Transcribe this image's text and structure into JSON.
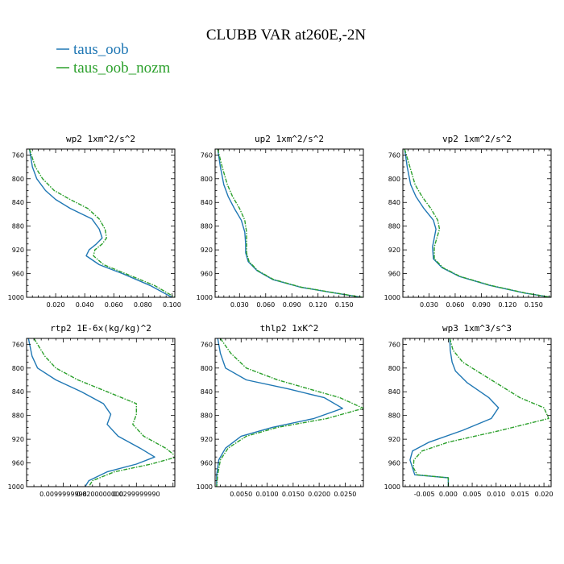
{
  "figure": {
    "title": "CLUBB VAR at260E,-2N",
    "legend": [
      {
        "label": "taus_oob",
        "color": "#1f77b4"
      },
      {
        "label": "taus_oob_nozm",
        "color": "#2ca02c"
      }
    ]
  },
  "chart_data": [
    {
      "type": "line",
      "title": "wp2   1xm^2/s^2",
      "xlim": [
        0.0,
        0.102
      ],
      "ylim": [
        1000,
        750
      ],
      "xticks": [
        0.02,
        0.04,
        0.06,
        0.08,
        0.1
      ],
      "xtick_labels": [
        "0.020",
        "0.040",
        "0.060",
        "0.080",
        "0.100"
      ],
      "yticks": [
        760,
        800,
        840,
        880,
        920,
        960,
        1000
      ],
      "ytick_labels": [
        "760",
        "800",
        "840",
        "880",
        "920",
        "960",
        "1000"
      ],
      "series": [
        {
          "name": "taus_oob",
          "x": [
            0.002,
            0.004,
            0.007,
            0.013,
            0.02,
            0.03,
            0.045,
            0.05,
            0.052,
            0.048,
            0.043,
            0.041,
            0.05,
            0.066,
            0.085,
            0.1
          ],
          "y": [
            750,
            780,
            800,
            820,
            835,
            850,
            868,
            885,
            900,
            910,
            920,
            930,
            945,
            960,
            980,
            1000
          ]
        },
        {
          "name": "taus_oob_nozm",
          "x": [
            0.002,
            0.006,
            0.011,
            0.019,
            0.03,
            0.042,
            0.05,
            0.054,
            0.055,
            0.052,
            0.047,
            0.046,
            0.053,
            0.068,
            0.088,
            0.102
          ],
          "y": [
            750,
            780,
            800,
            820,
            835,
            850,
            868,
            885,
            900,
            910,
            920,
            930,
            945,
            960,
            980,
            1000
          ]
        }
      ]
    },
    {
      "type": "line",
      "title": "up2   1xm^2/s^2",
      "xlim": [
        0.002,
        0.172
      ],
      "ylim": [
        1000,
        750
      ],
      "xticks": [
        0.03,
        0.06,
        0.09,
        0.12,
        0.15
      ],
      "xtick_labels": [
        "0.030",
        "0.060",
        "0.090",
        "0.120",
        "0.150"
      ],
      "yticks": [
        760,
        800,
        840,
        880,
        920,
        960,
        1000
      ],
      "ytick_labels": [
        "760",
        "800",
        "840",
        "880",
        "920",
        "960",
        "1000"
      ],
      "series": [
        {
          "name": "taus_oob",
          "x": [
            0.005,
            0.008,
            0.012,
            0.017,
            0.024,
            0.032,
            0.036,
            0.037,
            0.037,
            0.04,
            0.05,
            0.068,
            0.1,
            0.14,
            0.17
          ],
          "y": [
            750,
            780,
            810,
            830,
            850,
            870,
            890,
            910,
            925,
            940,
            955,
            970,
            983,
            993,
            1000
          ]
        },
        {
          "name": "taus_oob_nozm",
          "x": [
            0.005,
            0.01,
            0.016,
            0.022,
            0.03,
            0.036,
            0.038,
            0.038,
            0.038,
            0.041,
            0.051,
            0.069,
            0.101,
            0.141,
            0.171
          ],
          "y": [
            750,
            780,
            810,
            830,
            850,
            870,
            890,
            910,
            925,
            940,
            955,
            970,
            983,
            993,
            1000
          ]
        }
      ]
    },
    {
      "type": "line",
      "title": "vp2   1xm^2/s^2",
      "xlim": [
        0.0,
        0.17
      ],
      "ylim": [
        1000,
        750
      ],
      "xticks": [
        0.03,
        0.06,
        0.09,
        0.12,
        0.15
      ],
      "xtick_labels": [
        "0.030",
        "0.060",
        "0.090",
        "0.120",
        "0.150"
      ],
      "yticks": [
        760,
        800,
        840,
        880,
        920,
        960,
        1000
      ],
      "ytick_labels": [
        "760",
        "800",
        "840",
        "880",
        "920",
        "960",
        "1000"
      ],
      "series": [
        {
          "name": "taus_oob",
          "x": [
            0.002,
            0.005,
            0.009,
            0.015,
            0.024,
            0.035,
            0.038,
            0.036,
            0.034,
            0.035,
            0.045,
            0.065,
            0.1,
            0.14,
            0.17
          ],
          "y": [
            750,
            780,
            810,
            830,
            850,
            870,
            885,
            900,
            915,
            935,
            950,
            965,
            980,
            993,
            1000
          ]
        },
        {
          "name": "taus_oob_nozm",
          "x": [
            0.002,
            0.008,
            0.014,
            0.022,
            0.032,
            0.04,
            0.042,
            0.039,
            0.036,
            0.036,
            0.046,
            0.066,
            0.101,
            0.141,
            0.17
          ],
          "y": [
            750,
            780,
            810,
            830,
            850,
            870,
            885,
            900,
            915,
            935,
            950,
            965,
            980,
            993,
            1000
          ]
        }
      ]
    },
    {
      "type": "line",
      "title": "rtp2   1E-6x(kg/kg)^2",
      "xlim": [
        0.0,
        0.0405
      ],
      "ylim": [
        1000,
        750
      ],
      "xticks": [
        0.01,
        0.02,
        0.03
      ],
      "xtick_labels": [
        "0.0099999998",
        "0.0200000000",
        "0.0299999990"
      ],
      "yticks": [
        760,
        800,
        840,
        880,
        920,
        960,
        1000
      ],
      "ytick_labels": [
        "760",
        "800",
        "840",
        "880",
        "920",
        "960",
        "1000"
      ],
      "series": [
        {
          "name": "taus_oob",
          "x": [
            0.0005,
            0.0015,
            0.003,
            0.008,
            0.015,
            0.021,
            0.023,
            0.022,
            0.025,
            0.031,
            0.035,
            0.03,
            0.022,
            0.017,
            0.016
          ],
          "y": [
            750,
            780,
            800,
            820,
            840,
            860,
            878,
            895,
            915,
            935,
            950,
            962,
            975,
            990,
            1000
          ]
        },
        {
          "name": "taus_oob_nozm",
          "x": [
            0.002,
            0.005,
            0.008,
            0.014,
            0.022,
            0.03,
            0.03,
            0.029,
            0.032,
            0.038,
            0.041,
            0.034,
            0.024,
            0.018,
            0.017
          ],
          "y": [
            750,
            780,
            800,
            820,
            840,
            860,
            878,
            895,
            915,
            935,
            950,
            962,
            975,
            990,
            1000
          ]
        }
      ]
    },
    {
      "type": "line",
      "title": "thlp2   1xK^2",
      "xlim": [
        0.0,
        0.0285
      ],
      "ylim": [
        1000,
        750
      ],
      "xticks": [
        0.005,
        0.01,
        0.015,
        0.02,
        0.025
      ],
      "xtick_labels": [
        "0.0050",
        "0.0100",
        "0.0150",
        "0.0200",
        "0.0250"
      ],
      "yticks": [
        760,
        800,
        840,
        880,
        920,
        960,
        1000
      ],
      "ytick_labels": [
        "760",
        "800",
        "840",
        "880",
        "920",
        "960",
        "1000"
      ],
      "series": [
        {
          "name": "taus_oob",
          "x": [
            0.0005,
            0.001,
            0.002,
            0.006,
            0.014,
            0.021,
            0.0245,
            0.019,
            0.011,
            0.005,
            0.002,
            0.0007,
            0.0003,
            0.0003
          ],
          "y": [
            750,
            775,
            800,
            820,
            835,
            850,
            868,
            885,
            900,
            915,
            935,
            955,
            980,
            1000
          ]
        },
        {
          "name": "taus_oob_nozm",
          "x": [
            0.001,
            0.003,
            0.006,
            0.012,
            0.018,
            0.024,
            0.0285,
            0.0215,
            0.012,
            0.006,
            0.0025,
            0.001,
            0.0005,
            0.0003
          ],
          "y": [
            750,
            775,
            800,
            820,
            835,
            850,
            868,
            885,
            900,
            915,
            935,
            955,
            980,
            1000
          ]
        }
      ]
    },
    {
      "type": "line",
      "title": "wp3   1xm^3/s^3",
      "xlim": [
        -0.0095,
        0.0215
      ],
      "ylim": [
        1000,
        750
      ],
      "xticks": [
        -0.005,
        0.0,
        0.005,
        0.01,
        0.015,
        0.02
      ],
      "xtick_labels": [
        "-0.005",
        "0.000",
        "0.005",
        "0.010",
        "0.015",
        "0.020"
      ],
      "yticks": [
        760,
        800,
        840,
        880,
        920,
        960,
        1000
      ],
      "ytick_labels": [
        "760",
        "800",
        "840",
        "880",
        "920",
        "960",
        "1000"
      ],
      "series": [
        {
          "name": "taus_oob",
          "x": [
            0.0003,
            0.0004,
            0.0008,
            0.0015,
            0.004,
            0.0085,
            0.0105,
            0.009,
            0.003,
            -0.004,
            -0.0075,
            -0.008,
            -0.0075,
            -0.007,
            0.0,
            0.0
          ],
          "y": [
            750,
            770,
            790,
            805,
            825,
            850,
            867,
            885,
            905,
            925,
            940,
            955,
            968,
            980,
            985,
            1000
          ]
        },
        {
          "name": "taus_oob_nozm",
          "x": [
            0.0003,
            0.001,
            0.003,
            0.006,
            0.01,
            0.015,
            0.02,
            0.021,
            0.011,
            0.0,
            -0.0055,
            -0.0072,
            -0.0073,
            -0.0065,
            0.0,
            0.0
          ],
          "y": [
            750,
            770,
            790,
            805,
            825,
            850,
            867,
            885,
            905,
            925,
            940,
            955,
            968,
            980,
            985,
            1000
          ]
        }
      ]
    }
  ]
}
